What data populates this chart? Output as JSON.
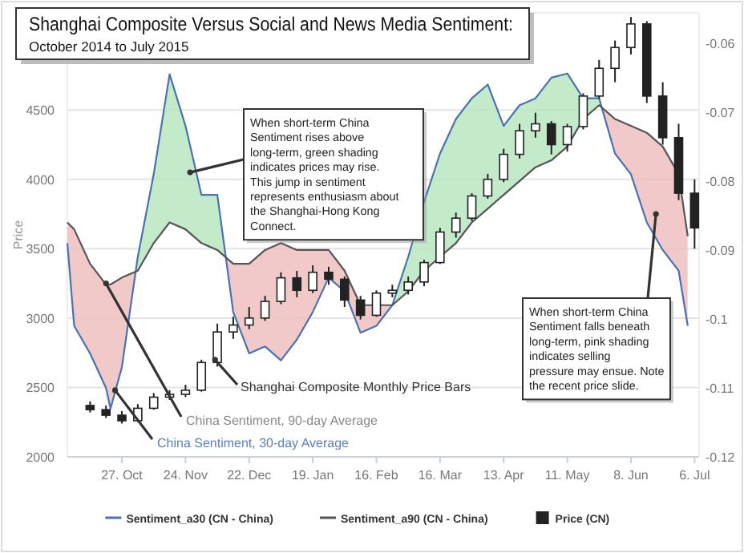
{
  "chart_data": {
    "type": "line",
    "title": "Shanghai Composite Versus Social and News Media Sentiment:",
    "subtitle": "October 2014 to July 2015",
    "ylabel": "Price",
    "xlim": [
      "2014-10-03",
      "2015-07-08"
    ],
    "xticks": [
      {
        "value": "2014-10-27",
        "label": "27. Oct"
      },
      {
        "value": "2014-11-24",
        "label": "24. Nov"
      },
      {
        "value": "2014-12-22",
        "label": "22. Dec"
      },
      {
        "value": "2015-01-19",
        "label": "19. Jan"
      },
      {
        "value": "2015-02-16",
        "label": "16. Feb"
      },
      {
        "value": "2015-03-16",
        "label": "16. Mar"
      },
      {
        "value": "2015-04-13",
        "label": "13. Apr"
      },
      {
        "value": "2015-05-11",
        "label": "11. May"
      },
      {
        "value": "2015-06-08",
        "label": "8. Jun"
      },
      {
        "value": "2015-07-06",
        "label": "6. Jul"
      }
    ],
    "ylim": [
      2000,
      5200
    ],
    "yticks": [
      2000,
      2500,
      3000,
      3500,
      4000,
      4500
    ],
    "y2lim": [
      -0.12,
      -0.0556
    ],
    "y2ticks": [
      -0.12,
      -0.11,
      -0.1,
      -0.09,
      -0.08,
      -0.07,
      -0.06
    ],
    "grid": "y",
    "legend": "bottom",
    "series": [
      {
        "name": "Sentiment_a30 (CN - China)",
        "axis": "y2",
        "color": "#4a72b0",
        "x": [
          "2014-10-03",
          "2014-10-06",
          "2014-10-13",
          "2014-10-20",
          "2014-10-22",
          "2014-10-27",
          "2014-11-03",
          "2014-11-10",
          "2014-11-17",
          "2014-11-24",
          "2014-12-01",
          "2014-12-08",
          "2014-12-15",
          "2014-12-22",
          "2014-12-29",
          "2015-01-05",
          "2015-01-12",
          "2015-01-19",
          "2015-01-26",
          "2015-02-02",
          "2015-02-09",
          "2015-02-16",
          "2015-02-23",
          "2015-03-02",
          "2015-03-09",
          "2015-03-16",
          "2015-03-23",
          "2015-03-30",
          "2015-04-06",
          "2015-04-13",
          "2015-04-20",
          "2015-04-27",
          "2015-05-04",
          "2015-05-11",
          "2015-05-18",
          "2015-05-25",
          "2015-06-01",
          "2015-06-08",
          "2015-06-15",
          "2015-06-22",
          "2015-06-29",
          "2015-07-03"
        ],
        "values": [
          -0.089,
          -0.101,
          -0.105,
          -0.11,
          -0.113,
          -0.107,
          -0.091,
          -0.079,
          -0.0645,
          -0.072,
          -0.082,
          -0.082,
          -0.099,
          -0.105,
          -0.104,
          -0.106,
          -0.103,
          -0.099,
          -0.094,
          -0.096,
          -0.102,
          -0.101,
          -0.098,
          -0.091,
          -0.083,
          -0.076,
          -0.071,
          -0.068,
          -0.066,
          -0.072,
          -0.069,
          -0.068,
          -0.065,
          -0.0644,
          -0.068,
          -0.068,
          -0.076,
          -0.079,
          -0.086,
          -0.09,
          -0.093,
          -0.101
        ]
      },
      {
        "name": "Sentiment_a90 (CN - China)",
        "axis": "y2",
        "color": "#555555",
        "x": [
          "2014-10-03",
          "2014-10-06",
          "2014-10-13",
          "2014-10-20",
          "2014-10-22",
          "2014-10-27",
          "2014-11-03",
          "2014-11-10",
          "2014-11-17",
          "2014-11-24",
          "2014-12-01",
          "2014-12-08",
          "2014-12-15",
          "2014-12-22",
          "2014-12-29",
          "2015-01-05",
          "2015-01-12",
          "2015-01-19",
          "2015-01-26",
          "2015-02-02",
          "2015-02-09",
          "2015-02-16",
          "2015-02-23",
          "2015-03-02",
          "2015-03-09",
          "2015-03-16",
          "2015-03-23",
          "2015-03-30",
          "2015-04-06",
          "2015-04-13",
          "2015-04-20",
          "2015-04-27",
          "2015-05-04",
          "2015-05-11",
          "2015-05-18",
          "2015-05-25",
          "2015-06-01",
          "2015-06-08",
          "2015-06-15",
          "2015-06-22",
          "2015-06-29",
          "2015-07-03"
        ],
        "values": [
          -0.086,
          -0.087,
          -0.092,
          -0.095,
          -0.095,
          -0.094,
          -0.093,
          -0.089,
          -0.086,
          -0.087,
          -0.089,
          -0.09,
          -0.092,
          -0.092,
          -0.09,
          -0.089,
          -0.09,
          -0.09,
          -0.09,
          -0.093,
          -0.098,
          -0.098,
          -0.098,
          -0.096,
          -0.093,
          -0.091,
          -0.089,
          -0.086,
          -0.084,
          -0.082,
          -0.08,
          -0.078,
          -0.077,
          -0.075,
          -0.071,
          -0.069,
          -0.071,
          -0.072,
          -0.073,
          -0.075,
          -0.079,
          -0.088
        ]
      },
      {
        "name": "Price (CN)",
        "type": "candlestick",
        "color": "#222222",
        "x": [
          "2014-10-13",
          "2014-10-20",
          "2014-10-27",
          "2014-11-03",
          "2014-11-10",
          "2014-11-17",
          "2014-11-24",
          "2014-12-01",
          "2014-12-08",
          "2014-12-15",
          "2014-12-22",
          "2014-12-29",
          "2015-01-05",
          "2015-01-12",
          "2015-01-19",
          "2015-01-26",
          "2015-02-02",
          "2015-02-09",
          "2015-02-16",
          "2015-02-23",
          "2015-03-02",
          "2015-03-09",
          "2015-03-16",
          "2015-03-23",
          "2015-03-30",
          "2015-04-06",
          "2015-04-13",
          "2015-04-20",
          "2015-04-27",
          "2015-05-04",
          "2015-05-11",
          "2015-05-18",
          "2015-05-25",
          "2015-06-01",
          "2015-06-08",
          "2015-06-15",
          "2015-06-22",
          "2015-06-29",
          "2015-07-06"
        ],
        "ohlc": [
          [
            2370,
            2400,
            2320,
            2340
          ],
          [
            2340,
            2370,
            2280,
            2300
          ],
          [
            2300,
            2330,
            2240,
            2260
          ],
          [
            2260,
            2380,
            2250,
            2350
          ],
          [
            2350,
            2460,
            2340,
            2430
          ],
          [
            2430,
            2480,
            2410,
            2450
          ],
          [
            2450,
            2520,
            2430,
            2480
          ],
          [
            2480,
            2700,
            2470,
            2680
          ],
          [
            2680,
            2960,
            2650,
            2900
          ],
          [
            2900,
            3010,
            2850,
            2950
          ],
          [
            2950,
            3080,
            2920,
            3000
          ],
          [
            3000,
            3160,
            2980,
            3120
          ],
          [
            3120,
            3330,
            3100,
            3290
          ],
          [
            3290,
            3340,
            3150,
            3200
          ],
          [
            3200,
            3380,
            3180,
            3330
          ],
          [
            3330,
            3370,
            3240,
            3280
          ],
          [
            3280,
            3300,
            3080,
            3130
          ],
          [
            3130,
            3160,
            2990,
            3020
          ],
          [
            3020,
            3200,
            3010,
            3180
          ],
          [
            3180,
            3240,
            3150,
            3200
          ],
          [
            3200,
            3300,
            3170,
            3260
          ],
          [
            3260,
            3420,
            3230,
            3400
          ],
          [
            3400,
            3650,
            3390,
            3620
          ],
          [
            3620,
            3760,
            3580,
            3720
          ],
          [
            3720,
            3900,
            3700,
            3880
          ],
          [
            3880,
            4040,
            3860,
            4000
          ],
          [
            4000,
            4220,
            3980,
            4180
          ],
          [
            4180,
            4400,
            4150,
            4350
          ],
          [
            4350,
            4480,
            4300,
            4400
          ],
          [
            4400,
            4420,
            4180,
            4250
          ],
          [
            4250,
            4400,
            4200,
            4380
          ],
          [
            4380,
            4620,
            4360,
            4600
          ],
          [
            4600,
            4860,
            4580,
            4800
          ],
          [
            4800,
            5000,
            4700,
            4950
          ],
          [
            4950,
            5170,
            4900,
            5120
          ],
          [
            5120,
            5140,
            4550,
            4600
          ],
          [
            4600,
            4700,
            4250,
            4300
          ],
          [
            4300,
            4400,
            3850,
            3900
          ],
          [
            3900,
            4000,
            3500,
            3650
          ]
        ]
      }
    ],
    "annotations": [
      {
        "text": "When short-term China Sentiment rises above long-term, green shading indicates prices may rise.  This jump in sentiment represents enthusiasm about the Shanghai-Hong Kong Connect.",
        "x": "2014-11-26",
        "y": 4050
      },
      {
        "text": "When short-term China Sentiment falls beneath long-term, pink shading indicates selling pressure may ensue. Note the recent price slide.",
        "x": "2015-06-19",
        "y": 3750
      },
      {
        "text": "Shanghai Composite Monthly Price Bars",
        "x": "2014-12-07",
        "y": 2700
      },
      {
        "text": "China Sentiment, 90-day Average",
        "x": "2014-10-20",
        "y": 3250
      },
      {
        "text": "China Sentiment, 30-day Average",
        "x": "2014-10-24",
        "y": 2480
      }
    ]
  }
}
